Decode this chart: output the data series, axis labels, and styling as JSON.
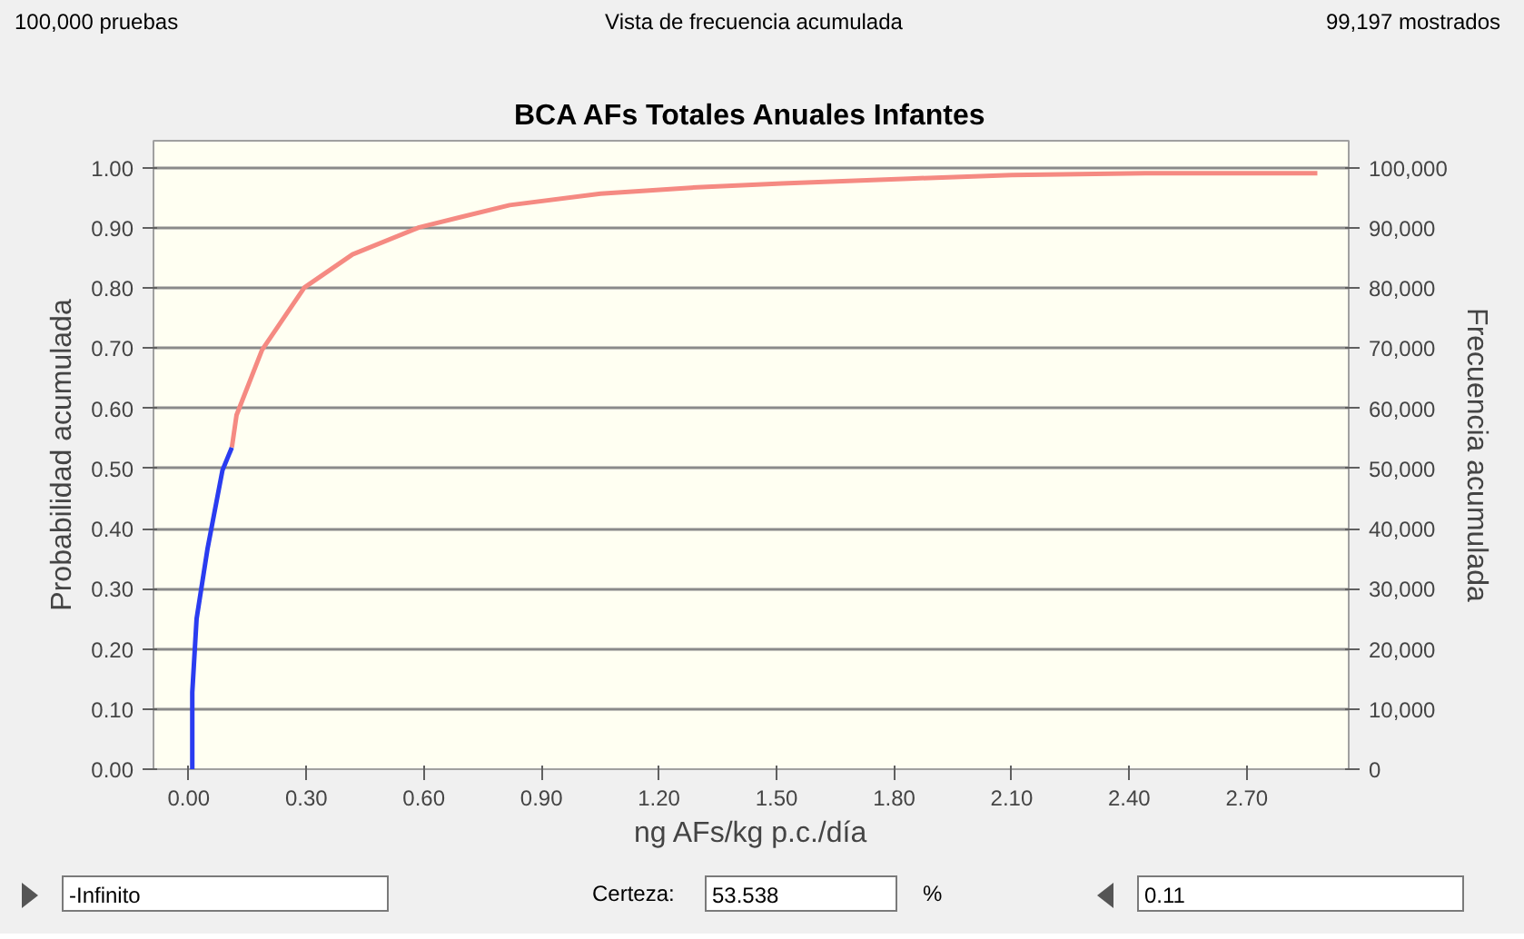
{
  "chart_data": {
    "type": "line",
    "title": "BCA AFs Totales Anuales Infantes",
    "xlabel": "ng AFs/kg p.c./día",
    "ylabel": "Probabilidad acumulada",
    "y2label": "Frecuencia acumulada",
    "annotations": [
      "100,000 pruebas",
      "Vista de frecuencia acumulada",
      "99,197 mostrados",
      "-Infinito",
      "Certeza:",
      "53.538",
      "%",
      "0.11"
    ],
    "series": [
      {
        "color": "#2a3cf0",
        "x": [
          0.009,
          0.009,
          0.02,
          0.048,
          0.086,
          0.11
        ],
        "values": [
          0,
          0.128,
          0.25,
          0.367,
          0.497,
          0.535
        ]
      },
      {
        "color": "#f58a82",
        "x": [
          0.11,
          0.122,
          0.187,
          0.295,
          0.418,
          0.588,
          0.819,
          1.051,
          1.282,
          1.514,
          1.838,
          2.1,
          2.44,
          2.88
        ],
        "values": [
          0.535,
          0.589,
          0.697,
          0.801,
          0.856,
          0.901,
          0.938,
          0.957,
          0.967,
          0.974,
          0.982,
          0.988,
          0.991,
          0.991
        ]
      }
    ],
    "xlim": [
      -0.09,
      2.96
    ],
    "ylim": [
      0,
      1.045
    ],
    "y2lim": [
      0,
      104500
    ],
    "xticks": [
      {
        "value": 0,
        "label": "0.00"
      },
      {
        "value": 0.3,
        "label": "0.30"
      },
      {
        "value": 0.6,
        "label": "0.60"
      },
      {
        "value": 0.9,
        "label": "0.90"
      },
      {
        "value": 1.2,
        "label": "1.20"
      },
      {
        "value": 1.5,
        "label": "1.50"
      },
      {
        "value": 1.8,
        "label": "1.80"
      },
      {
        "value": 2.1,
        "label": "2.10"
      },
      {
        "value": 2.4,
        "label": "2.40"
      },
      {
        "value": 2.7,
        "label": "2.70"
      }
    ],
    "yticks": [
      {
        "value": 0,
        "label": "0.00"
      },
      {
        "value": 0.1,
        "label": "0.10"
      },
      {
        "value": 0.2,
        "label": "0.20"
      },
      {
        "value": 0.3,
        "label": "0.30"
      },
      {
        "value": 0.4,
        "label": "0.40"
      },
      {
        "value": 0.5,
        "label": "0.50"
      },
      {
        "value": 0.6,
        "label": "0.60"
      },
      {
        "value": 0.7,
        "label": "0.70"
      },
      {
        "value": 0.8,
        "label": "0.80"
      },
      {
        "value": 0.9,
        "label": "0.90"
      },
      {
        "value": 1,
        "label": "1.00"
      }
    ],
    "y2ticks": [
      0,
      {
        "value": 10000,
        "label": "10,000"
      },
      {
        "value": 20000,
        "label": "20,000"
      },
      {
        "value": 30000,
        "label": "30,000"
      },
      {
        "value": 40000,
        "label": "40,000"
      },
      {
        "value": 50000,
        "label": "50,000"
      },
      {
        "value": 60000,
        "label": "60,000"
      },
      {
        "value": 70000,
        "label": "70,000"
      },
      {
        "value": 80000,
        "label": "80,000"
      },
      {
        "value": 90000,
        "label": "90,000"
      },
      {
        "value": 100000,
        "label": "100,000"
      }
    ],
    "grid": "y",
    "line_style": "solid"
  }
}
